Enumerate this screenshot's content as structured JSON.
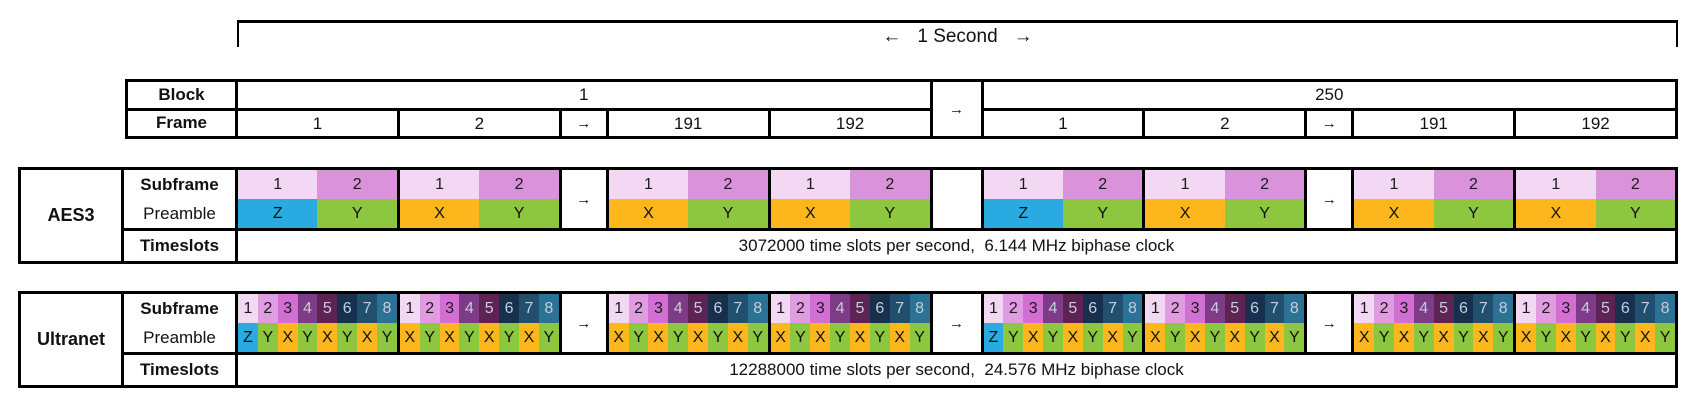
{
  "bracket": {
    "left_arrow": "←",
    "label": "1 Second",
    "right_arrow": "→"
  },
  "top_table": {
    "row_labels": {
      "block": "Block",
      "frame": "Frame"
    },
    "block_separator": "→",
    "blocks": [
      {
        "value": "1",
        "frames": [
          {
            "text": "1",
            "type": "frame"
          },
          {
            "text": "2",
            "type": "frame"
          },
          {
            "text": "→",
            "type": "arrow"
          },
          {
            "text": "191",
            "type": "frame"
          },
          {
            "text": "192",
            "type": "frame"
          }
        ]
      },
      {
        "value": "250",
        "frames": [
          {
            "text": "1",
            "type": "frame"
          },
          {
            "text": "2",
            "type": "frame"
          },
          {
            "text": "→",
            "type": "arrow"
          },
          {
            "text": "191",
            "type": "frame"
          },
          {
            "text": "192",
            "type": "frame"
          }
        ]
      }
    ]
  },
  "sections": [
    {
      "id": "aes3",
      "label": "AES3",
      "row_labels": {
        "subframe": "Subframe",
        "preamble": "Preamble",
        "timeslots": "Timeslots"
      },
      "frame_separator": "→",
      "block_separator": "",
      "timeslots_text": "3072000 time slots per second,  6.144 MHz biphase clock",
      "subframe_styles": [
        {
          "label": "1",
          "bg": "#f2d8f3",
          "fg": "#1a1a1a"
        },
        {
          "label": "2",
          "bg": "#da92db",
          "fg": "#1a1a1a"
        }
      ],
      "blocks": [
        {
          "frames": [
            [
              "Z",
              "Y"
            ],
            [
              "X",
              "Y"
            ],
            "→",
            [
              "X",
              "Y"
            ],
            [
              "X",
              "Y"
            ]
          ]
        },
        {
          "frames": [
            [
              "Z",
              "Y"
            ],
            [
              "X",
              "Y"
            ],
            "→",
            [
              "X",
              "Y"
            ],
            [
              "X",
              "Y"
            ]
          ]
        }
      ]
    },
    {
      "id": "ultranet",
      "label": "Ultranet",
      "row_labels": {
        "subframe": "Subframe",
        "preamble": "Preamble",
        "timeslots": "Timeslots"
      },
      "frame_separator": "→",
      "block_separator": "→",
      "timeslots_text": "12288000 time slots per second,  24.576 MHz biphase clock",
      "subframe_styles": [
        {
          "label": "1",
          "bg": "#f2d8f3",
          "fg": "#1a1a1a"
        },
        {
          "label": "2",
          "bg": "#df9ce0",
          "fg": "#1a1a1a"
        },
        {
          "label": "3",
          "bg": "#d26fd2",
          "fg": "#1a1a1a"
        },
        {
          "label": "4",
          "bg": "#7e3c88",
          "fg": "#c8cdd8"
        },
        {
          "label": "5",
          "bg": "#5c2354",
          "fg": "#c8cdd8"
        },
        {
          "label": "6",
          "bg": "#17304d",
          "fg": "#c8cdd8"
        },
        {
          "label": "7",
          "bg": "#20506e",
          "fg": "#c8cdd8"
        },
        {
          "label": "8",
          "bg": "#2c7294",
          "fg": "#c8cdd8"
        }
      ],
      "blocks": [
        {
          "frames": [
            [
              "Z",
              "Y",
              "X",
              "Y",
              "X",
              "Y",
              "X",
              "Y"
            ],
            [
              "X",
              "Y",
              "X",
              "Y",
              "X",
              "Y",
              "X",
              "Y"
            ],
            "→",
            [
              "X",
              "Y",
              "X",
              "Y",
              "X",
              "Y",
              "X",
              "Y"
            ],
            [
              "X",
              "Y",
              "X",
              "Y",
              "X",
              "Y",
              "X",
              "Y"
            ]
          ]
        },
        {
          "frames": [
            [
              "Z",
              "Y",
              "X",
              "Y",
              "X",
              "Y",
              "X",
              "Y"
            ],
            [
              "X",
              "Y",
              "X",
              "Y",
              "X",
              "Y",
              "X",
              "Y"
            ],
            "→",
            [
              "X",
              "Y",
              "X",
              "Y",
              "X",
              "Y",
              "X",
              "Y"
            ],
            [
              "X",
              "Y",
              "X",
              "Y",
              "X",
              "Y",
              "X",
              "Y"
            ]
          ]
        }
      ]
    }
  ],
  "colors": {
    "preamble": {
      "Z": "#29abe2",
      "Y": "#8dc63f",
      "X": "#fdb61b"
    }
  }
}
